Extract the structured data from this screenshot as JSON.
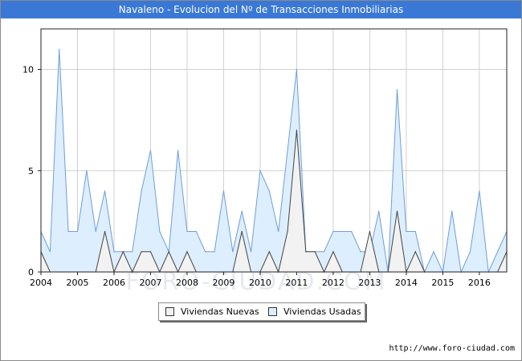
{
  "header": {
    "title": "Navaleno - Evolucion del Nº de Transacciones Inmobiliarias"
  },
  "footer": {
    "url": "http://www.foro-ciudad.com"
  },
  "watermark": "FORO-CIUDAD.COM",
  "colors": {
    "title_bar": "#3a78d6",
    "usadas_fill": "#ddeeff",
    "usadas_line": "#6d9fd8",
    "nuevas_fill": "#f2f2f2",
    "nuevas_line": "#444444",
    "grid": "#d0d0d0"
  },
  "chart_data": {
    "type": "area",
    "title": "Navaleno - Evolucion del Nº de Transacciones Inmobiliarias",
    "x_quarters": [
      "2004Q1",
      "2004Q2",
      "2004Q3",
      "2004Q4",
      "2005Q1",
      "2005Q2",
      "2005Q3",
      "2005Q4",
      "2006Q1",
      "2006Q2",
      "2006Q3",
      "2006Q4",
      "2007Q1",
      "2007Q2",
      "2007Q3",
      "2007Q4",
      "2008Q1",
      "2008Q2",
      "2008Q3",
      "2008Q4",
      "2009Q1",
      "2009Q2",
      "2009Q3",
      "2009Q4",
      "2010Q1",
      "2010Q2",
      "2010Q3",
      "2010Q4",
      "2011Q1",
      "2011Q2",
      "2011Q3",
      "2011Q4",
      "2012Q1",
      "2012Q2",
      "2012Q3",
      "2012Q4",
      "2013Q1",
      "2013Q2",
      "2013Q3",
      "2013Q4",
      "2014Q1",
      "2014Q2",
      "2014Q3",
      "2014Q4",
      "2015Q1",
      "2015Q2",
      "2015Q3",
      "2015Q4",
      "2016Q1",
      "2016Q2",
      "2016Q3",
      "2016Q4"
    ],
    "x_tick_labels": [
      "2004",
      "2005",
      "2006",
      "2007",
      "2008",
      "2009",
      "2010",
      "2011",
      "2012",
      "2013",
      "2014",
      "2015",
      "2016"
    ],
    "y_tick_labels": [
      "0",
      "5",
      "10"
    ],
    "ylim": [
      0,
      12
    ],
    "grid": true,
    "legend_position": "bottom-center",
    "series": [
      {
        "name": "Viviendas Usadas",
        "values": [
          2,
          1,
          11,
          2,
          2,
          5,
          2,
          4,
          1,
          1,
          1,
          4,
          6,
          2,
          1,
          6,
          2,
          2,
          1,
          1,
          4,
          1,
          3,
          1,
          5,
          4,
          2,
          6,
          10,
          1,
          1,
          1,
          2,
          2,
          2,
          1,
          1,
          3,
          0,
          9,
          2,
          2,
          0,
          1,
          0,
          3,
          0,
          1,
          4,
          0,
          1,
          2
        ]
      },
      {
        "name": "Viviendas Nuevas",
        "values": [
          1,
          0,
          0,
          0,
          0,
          0,
          0,
          2,
          0,
          1,
          0,
          1,
          1,
          0,
          1,
          0,
          1,
          0,
          0,
          0,
          0,
          0,
          2,
          0,
          0,
          1,
          0,
          2,
          7,
          1,
          1,
          0,
          1,
          0,
          0,
          0,
          2,
          0,
          0,
          3,
          0,
          1,
          0,
          0,
          0,
          0,
          0,
          0,
          0,
          0,
          0,
          1
        ]
      }
    ]
  }
}
